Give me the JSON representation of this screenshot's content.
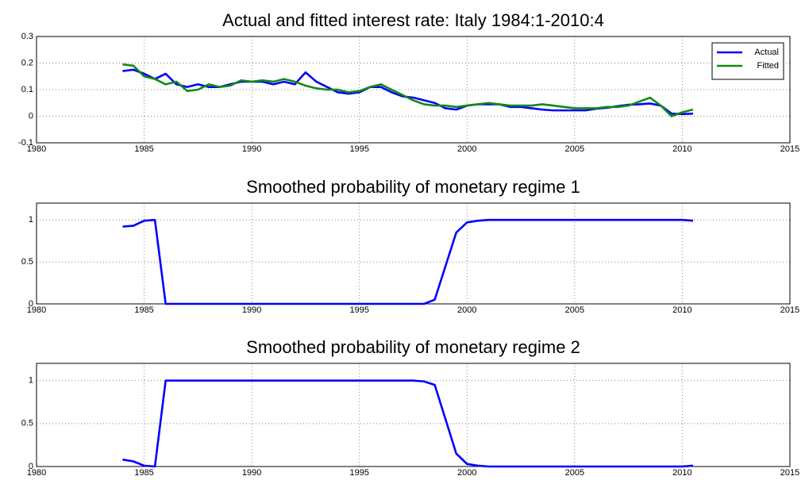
{
  "chart_data": [
    {
      "type": "line",
      "title": "Actual and fitted interest rate: Italy 1984:1-2010:4",
      "x": [
        1984,
        1984.5,
        1985,
        1985.5,
        1986,
        1986.5,
        1987,
        1987.5,
        1988,
        1988.5,
        1989,
        1989.5,
        1990,
        1990.5,
        1991,
        1991.5,
        1992,
        1992.5,
        1993,
        1993.5,
        1994,
        1994.5,
        1995,
        1995.5,
        1996,
        1996.5,
        1997,
        1997.5,
        1998,
        1998.5,
        1999,
        1999.5,
        2000,
        2000.5,
        2001,
        2001.5,
        2002,
        2002.5,
        2003,
        2003.5,
        2004,
        2004.5,
        2005,
        2005.5,
        2006,
        2006.5,
        2007,
        2007.5,
        2008,
        2008.5,
        2009,
        2009.5,
        2010,
        2010.5
      ],
      "series": [
        {
          "name": "Actual",
          "color": "#0000ff",
          "values": [
            0.17,
            0.175,
            0.16,
            0.14,
            0.16,
            0.12,
            0.11,
            0.12,
            0.11,
            0.11,
            0.12,
            0.13,
            0.13,
            0.13,
            0.12,
            0.13,
            0.12,
            0.165,
            0.13,
            0.11,
            0.09,
            0.085,
            0.09,
            0.11,
            0.11,
            0.09,
            0.075,
            0.07,
            0.06,
            0.05,
            0.03,
            0.025,
            0.04,
            0.045,
            0.045,
            0.045,
            0.035,
            0.035,
            0.03,
            0.025,
            0.022,
            0.022,
            0.022,
            0.022,
            0.028,
            0.032,
            0.038,
            0.043,
            0.045,
            0.048,
            0.04,
            0.01,
            0.008,
            0.01
          ]
        },
        {
          "name": "Fitted",
          "color": "#138a13",
          "values": [
            0.195,
            0.19,
            0.15,
            0.14,
            0.12,
            0.13,
            0.095,
            0.1,
            0.12,
            0.11,
            0.115,
            0.135,
            0.13,
            0.135,
            0.13,
            0.14,
            0.13,
            0.115,
            0.105,
            0.1,
            0.1,
            0.09,
            0.095,
            0.11,
            0.12,
            0.1,
            0.08,
            0.06,
            0.045,
            0.04,
            0.04,
            0.035,
            0.04,
            0.045,
            0.05,
            0.045,
            0.04,
            0.04,
            0.04,
            0.045,
            0.04,
            0.035,
            0.03,
            0.03,
            0.03,
            0.035,
            0.035,
            0.04,
            0.055,
            0.07,
            0.04,
            0,
            0.015,
            0.025
          ]
        }
      ],
      "xlim": [
        1980,
        2015
      ],
      "xticks": [
        1980,
        1985,
        1990,
        1995,
        2000,
        2005,
        2010,
        2015
      ],
      "ylim": [
        -0.1,
        0.3
      ],
      "yticks": [
        -0.1,
        0,
        0.1,
        0.2,
        0.3
      ],
      "grid": true,
      "legend": "northeast"
    },
    {
      "type": "line",
      "title": "Smoothed probability of monetary regime 1",
      "x": [
        1984,
        1984.5,
        1985,
        1985.5,
        1986,
        1986.5,
        1987,
        1987.5,
        1988,
        1988.5,
        1989,
        1989.5,
        1990,
        1990.5,
        1991,
        1991.5,
        1992,
        1992.5,
        1993,
        1993.5,
        1994,
        1994.5,
        1995,
        1995.5,
        1996,
        1996.5,
        1997,
        1997.5,
        1998,
        1998.5,
        1999,
        1999.5,
        2000,
        2000.5,
        2001,
        2001.5,
        2002,
        2002.5,
        2003,
        2003.5,
        2004,
        2004.5,
        2005,
        2005.5,
        2006,
        2006.5,
        2007,
        2007.5,
        2008,
        2008.5,
        2009,
        2009.5,
        2010,
        2010.5
      ],
      "values": [
        0.92,
        0.93,
        0.99,
        1,
        0,
        0,
        0,
        0,
        0,
        0,
        0,
        0,
        0,
        0,
        0,
        0,
        0,
        0,
        0,
        0,
        0,
        0,
        0,
        0,
        0,
        0,
        0,
        0,
        0,
        0.05,
        0.45,
        0.85,
        0.97,
        0.99,
        1,
        1,
        1,
        1,
        1,
        1,
        1,
        1,
        1,
        1,
        1,
        1,
        1,
        1,
        1,
        1,
        1,
        1,
        1,
        0.99
      ],
      "color": "#0000ff",
      "xlim": [
        1980,
        2015
      ],
      "xticks": [
        1980,
        1985,
        1990,
        1995,
        2000,
        2005,
        2010,
        2015
      ],
      "ylim": [
        0,
        1.2
      ],
      "yticks": [
        0,
        0.5,
        1
      ],
      "grid": true
    },
    {
      "type": "line",
      "title": "Smoothed probability of monetary regime 2",
      "x": [
        1984,
        1984.5,
        1985,
        1985.5,
        1986,
        1986.5,
        1987,
        1987.5,
        1988,
        1988.5,
        1989,
        1989.5,
        1990,
        1990.5,
        1991,
        1991.5,
        1992,
        1992.5,
        1993,
        1993.5,
        1994,
        1994.5,
        1995,
        1995.5,
        1996,
        1996.5,
        1997,
        1997.5,
        1998,
        1998.5,
        1999,
        1999.5,
        2000,
        2000.5,
        2001,
        2001.5,
        2002,
        2002.5,
        2003,
        2003.5,
        2004,
        2004.5,
        2005,
        2005.5,
        2006,
        2006.5,
        2007,
        2007.5,
        2008,
        2008.5,
        2009,
        2009.5,
        2010,
        2010.5
      ],
      "values": [
        0.08,
        0.06,
        0.01,
        0,
        1,
        1,
        1,
        1,
        1,
        1,
        1,
        1,
        1,
        1,
        1,
        1,
        1,
        1,
        1,
        1,
        1,
        1,
        1,
        1,
        1,
        1,
        1,
        1,
        0.99,
        0.95,
        0.55,
        0.15,
        0.03,
        0.01,
        0,
        0,
        0,
        0,
        0,
        0,
        0,
        0,
        0,
        0,
        0,
        0,
        0,
        0,
        0,
        0,
        0,
        0,
        0,
        0.01
      ],
      "color": "#0000ff",
      "xlim": [
        1980,
        2015
      ],
      "xticks": [
        1980,
        1985,
        1990,
        1995,
        2000,
        2005,
        2010,
        2015
      ],
      "ylim": [
        0,
        1.2
      ],
      "yticks": [
        0,
        0.5,
        1
      ],
      "grid": true
    }
  ]
}
